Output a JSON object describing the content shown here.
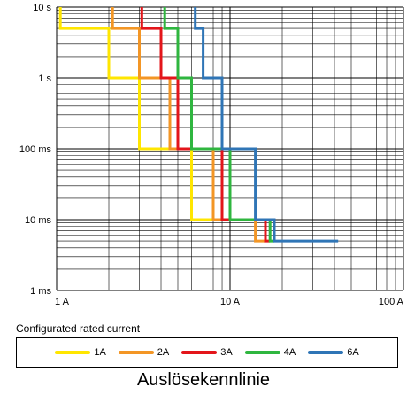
{
  "chart_data": {
    "type": "line",
    "xscale": "log",
    "yscale": "log",
    "xlim": [
      1,
      100
    ],
    "ylim": [
      0.001,
      10
    ],
    "grid": true,
    "xticks": [
      {
        "value": 1,
        "label": "1 A"
      },
      {
        "value": 10,
        "label": "10 A"
      },
      {
        "value": 100,
        "label": "100 A"
      }
    ],
    "yticks": [
      {
        "value": 10,
        "label": "10 s"
      },
      {
        "value": 1,
        "label": "1 s"
      },
      {
        "value": 0.1,
        "label": "100 ms"
      },
      {
        "value": 0.01,
        "label": "10 ms"
      },
      {
        "value": 0.001,
        "label": "1 ms"
      }
    ],
    "xlabel": "Configurated rated current",
    "caption": "Auslösekennlinie",
    "legend_position": "bottom",
    "series": [
      {
        "name": "1A",
        "color": "#ffe600",
        "points": [
          [
            1.05,
            10
          ],
          [
            1.05,
            5
          ],
          [
            2,
            5
          ],
          [
            2,
            1
          ],
          [
            3,
            1
          ],
          [
            3,
            0.1
          ],
          [
            6,
            0.1
          ],
          [
            6,
            0.01
          ],
          [
            8,
            0.01
          ],
          [
            8,
            0.01
          ]
        ]
      },
      {
        "name": "2A",
        "color": "#f39625",
        "points": [
          [
            2.1,
            10
          ],
          [
            2.1,
            5
          ],
          [
            3,
            5
          ],
          [
            3,
            1
          ],
          [
            4.5,
            1
          ],
          [
            4.5,
            0.1
          ],
          [
            8,
            0.1
          ],
          [
            8,
            0.01
          ],
          [
            14,
            0.01
          ],
          [
            14,
            0.005
          ],
          [
            16,
            0.005
          ]
        ]
      },
      {
        "name": "3A",
        "color": "#e3151a",
        "points": [
          [
            3.1,
            10
          ],
          [
            3.1,
            5
          ],
          [
            4,
            5
          ],
          [
            4,
            1
          ],
          [
            5,
            1
          ],
          [
            5,
            0.1
          ],
          [
            9,
            0.1
          ],
          [
            9,
            0.01
          ],
          [
            16,
            0.01
          ],
          [
            16,
            0.005
          ],
          [
            17,
            0.005
          ]
        ]
      },
      {
        "name": "4A",
        "color": "#2fb63f",
        "points": [
          [
            4.2,
            10
          ],
          [
            4.2,
            5
          ],
          [
            5,
            5
          ],
          [
            5,
            1
          ],
          [
            6,
            1
          ],
          [
            6,
            0.1
          ],
          [
            10,
            0.1
          ],
          [
            10,
            0.01
          ],
          [
            17,
            0.01
          ],
          [
            17,
            0.005
          ],
          [
            18,
            0.005
          ]
        ]
      },
      {
        "name": "6A",
        "color": "#2f75b6",
        "points": [
          [
            6.3,
            10
          ],
          [
            6.3,
            5
          ],
          [
            7,
            5
          ],
          [
            7,
            1
          ],
          [
            9,
            1
          ],
          [
            9,
            0.1
          ],
          [
            14,
            0.1
          ],
          [
            14,
            0.01
          ],
          [
            18,
            0.01
          ],
          [
            18,
            0.005
          ],
          [
            42,
            0.005
          ]
        ]
      }
    ]
  }
}
